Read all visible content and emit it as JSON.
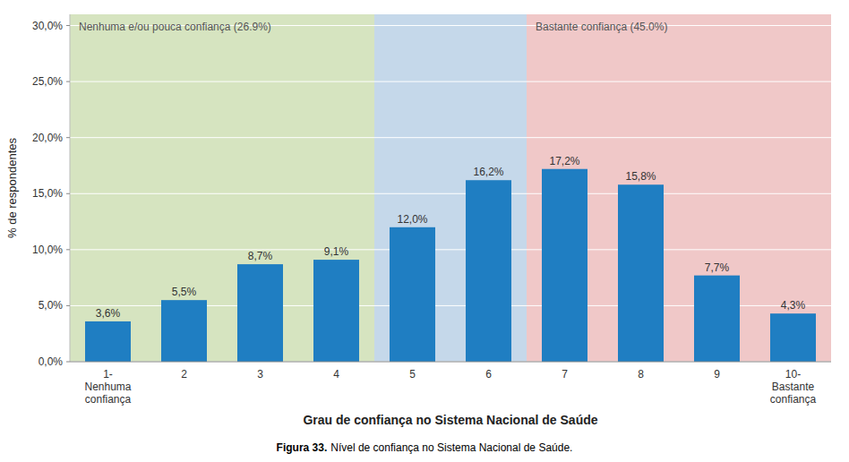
{
  "chart_data": {
    "type": "bar",
    "categories": [
      "1-\nNenhuma\nconfiança",
      "2",
      "3",
      "4",
      "5",
      "6",
      "7",
      "8",
      "9",
      "10-\nBastante\nconfiança"
    ],
    "values": [
      3.6,
      5.5,
      8.7,
      9.1,
      12.0,
      16.2,
      17.2,
      15.8,
      7.7,
      4.3
    ],
    "value_labels": [
      "3,6%",
      "5,5%",
      "8,7%",
      "9,1%",
      "12,0%",
      "16,2%",
      "17,2%",
      "15,8%",
      "7,7%",
      "4,3%"
    ],
    "data_labels": true,
    "color": "#1F7EC2",
    "ylabel": "% de respondentes",
    "xlabel": "Grau de confiança no Sistema Nacional de Saúde",
    "ylim": [
      0,
      31
    ],
    "yticks": [
      {
        "value": 0,
        "label": "0,0%"
      },
      {
        "value": 5,
        "label": "5,0%"
      },
      {
        "value": 10,
        "label": "10,0%"
      },
      {
        "value": 15,
        "label": "15,0%"
      },
      {
        "value": 20,
        "label": "20,0%"
      },
      {
        "value": 25,
        "label": "25,0%"
      },
      {
        "value": 30,
        "label": "30,0%"
      }
    ],
    "grid": true,
    "bands": [
      {
        "from": 0,
        "to": 3,
        "color": "#D6E4C0",
        "label": "Nenhuma e/ou pouca confiança (26.9%)"
      },
      {
        "from": 4,
        "to": 5,
        "color": "#C5D8EA"
      },
      {
        "from": 6,
        "to": 9,
        "color": "#F0C8C8",
        "label": "Bastante confiança (45.0%)"
      }
    ],
    "caption_label": "Figura 33.",
    "caption": "Nível de confiança no Sistema Nacional de Saúde."
  }
}
